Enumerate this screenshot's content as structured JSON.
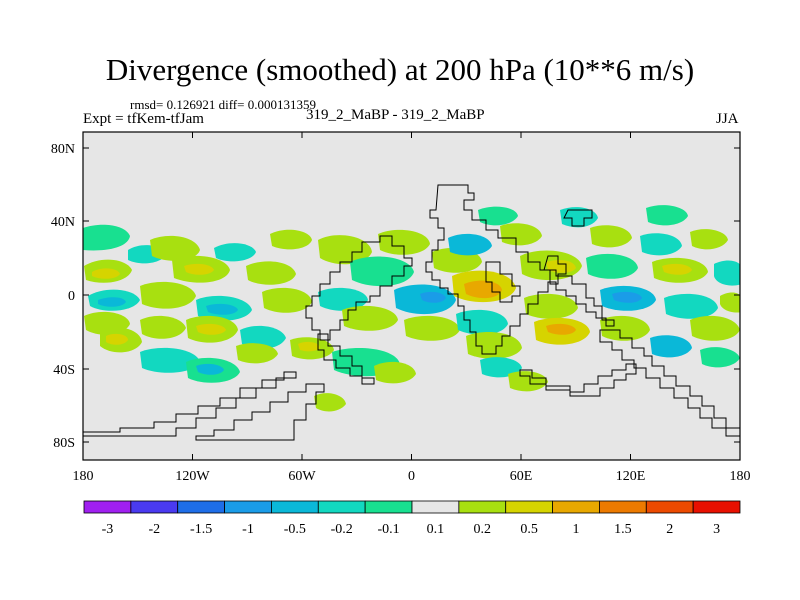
{
  "header": {
    "title": "Divergence (smoothed) at 200 hPa (10**6 m/s)",
    "stats": "rmsd= 0.126921 diff= 0.000131359",
    "experiment": "Expt = tfKem-tfJam",
    "case": "319_2_MaBP - 319_2_MaBP",
    "season": "JJA"
  },
  "map": {
    "lon_ticks": [
      "180",
      "120W",
      "60W",
      "0",
      "60E",
      "120E",
      "180"
    ],
    "lat_ticks": [
      "80N",
      "40N",
      "0",
      "40S",
      "80S"
    ],
    "background_color": "#e6e6e6"
  },
  "colorbar": {
    "labels": [
      "-3",
      "-2",
      "-1.5",
      "-1",
      "-0.5",
      "-0.2",
      "-0.1",
      "0.1",
      "0.2",
      "0.5",
      "1",
      "1.5",
      "2",
      "3"
    ],
    "colors": [
      "#a020f0",
      "#4a3af0",
      "#1e6ee8",
      "#1a9ce8",
      "#0ab8d8",
      "#12d8c0",
      "#18e090",
      "#e6e6e6",
      "#a8e010",
      "#d6d400",
      "#e8a800",
      "#ec7a00",
      "#ec4a00",
      "#e81000"
    ]
  }
}
